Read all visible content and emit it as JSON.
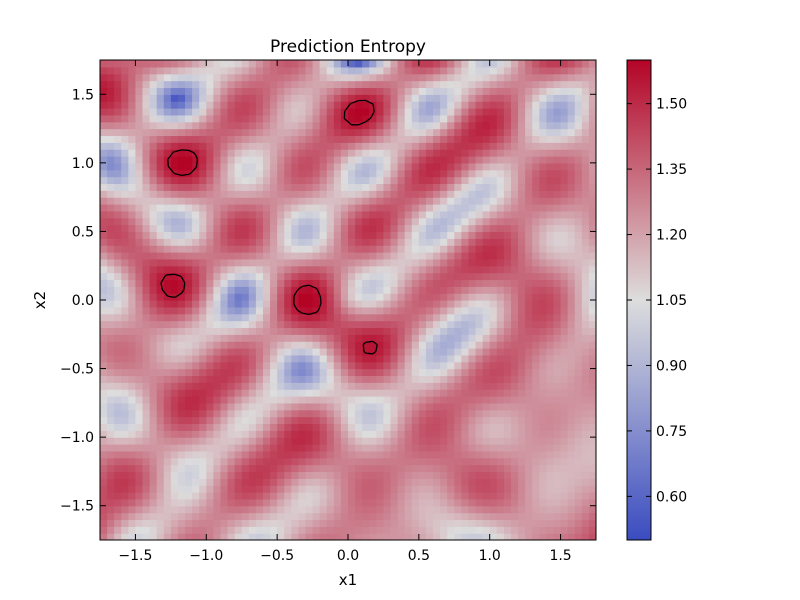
{
  "chart_data": {
    "type": "heatmap",
    "title": "Prediction Entropy",
    "xlabel": "x1",
    "ylabel": "x2",
    "xlim": [
      -1.75,
      1.75
    ],
    "ylim": [
      -1.75,
      1.75
    ],
    "x_ticks": [
      -1.5,
      -1.0,
      -0.5,
      0.0,
      0.5,
      1.0,
      1.5
    ],
    "x_tick_labels": [
      "−1.5",
      "−1.0",
      "−0.5",
      "0.0",
      "0.5",
      "1.0",
      "1.5"
    ],
    "y_ticks": [
      -1.5,
      -1.0,
      -0.5,
      0.0,
      0.5,
      1.0,
      1.5
    ],
    "y_tick_labels": [
      "−1.5",
      "−1.0",
      "−0.5",
      "0.0",
      "0.5",
      "1.0",
      "1.5"
    ],
    "colorbar": {
      "range": [
        0.5,
        1.6
      ],
      "ticks": [
        0.6,
        0.75,
        0.9,
        1.05,
        1.2,
        1.35,
        1.5
      ],
      "tick_labels": [
        "0.60",
        "0.75",
        "0.90",
        "1.05",
        "1.20",
        "1.35",
        "1.50"
      ],
      "colormap": "coolwarm",
      "low_color": "#3b4cc0",
      "mid_color": "#dddddd",
      "high_color": "#b40426"
    },
    "contour_level": 1.55,
    "contour_color": "#000000",
    "grid": false
  }
}
